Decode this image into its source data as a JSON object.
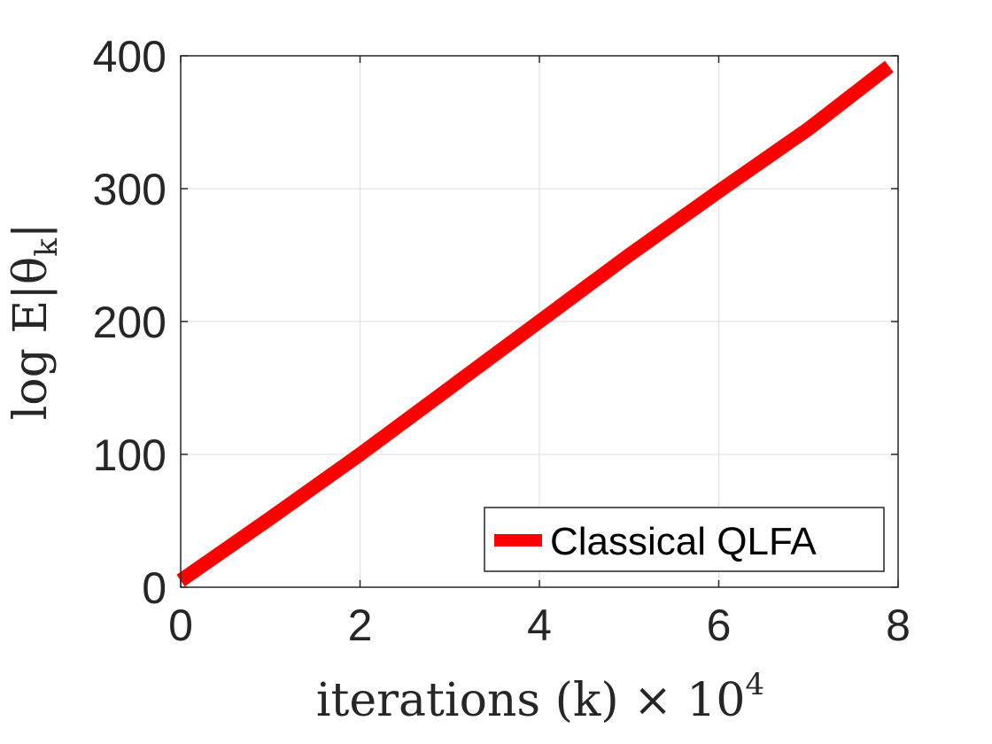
{
  "chart_data": {
    "type": "line",
    "xlabel": "iterations (k) × 10",
    "xlabel_exponent": "4",
    "ylabel": "log E|θ",
    "ylabel_subscript": "k",
    "ylabel_suffix": "|",
    "xlim": [
      0,
      8
    ],
    "ylim": [
      0,
      400
    ],
    "xticks": [
      0,
      2,
      4,
      6,
      8
    ],
    "xtick_labels": [
      "0",
      "2",
      "4",
      "6",
      "8"
    ],
    "yticks": [
      0,
      100,
      200,
      300,
      400
    ],
    "ytick_labels": [
      "0",
      "100",
      "200",
      "300",
      "400"
    ],
    "grid": true,
    "legend_position": "bottom-right",
    "series": [
      {
        "name": "Classical QLFA",
        "color": "#ff0000",
        "x": [
          0,
          1,
          2,
          3,
          4,
          5,
          6,
          7,
          7.9
        ],
        "y": [
          5,
          52,
          100,
          150,
          200,
          250,
          298,
          345,
          392
        ]
      }
    ]
  }
}
